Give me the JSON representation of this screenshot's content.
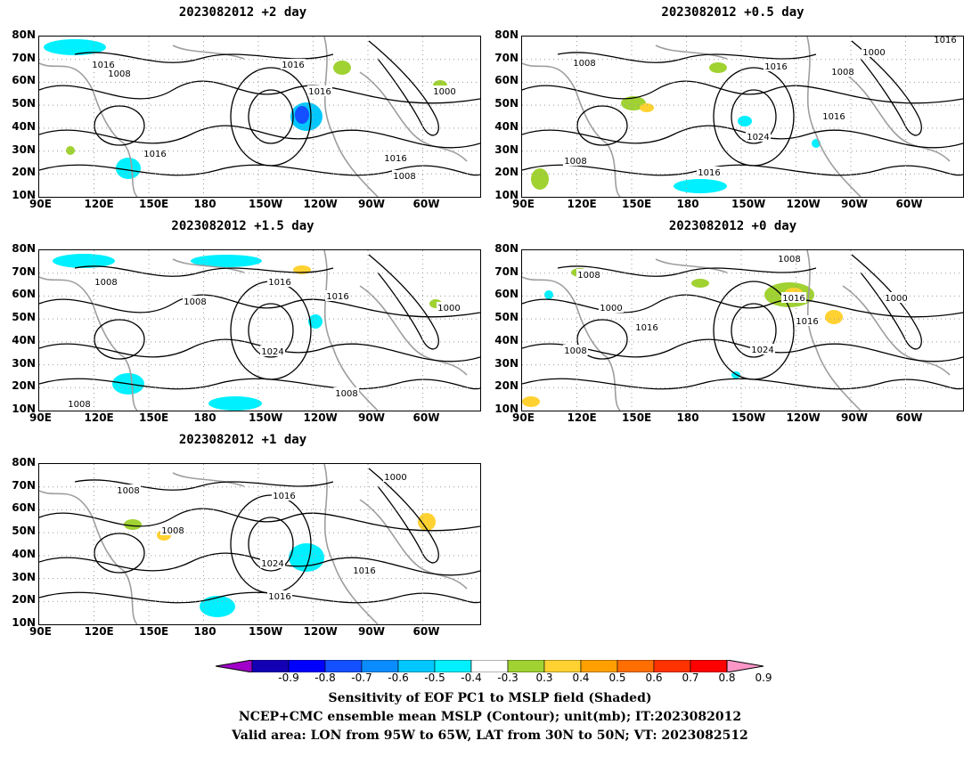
{
  "panels": [
    {
      "title": "2023082012 +2 day",
      "contour_labels": [
        "1016",
        "1008",
        "1016",
        "1016",
        "1000",
        "1016",
        "1016",
        "1008"
      ]
    },
    {
      "title": "2023082012 +0.5 day",
      "contour_labels": [
        "1008",
        "1016",
        "1000",
        "1008",
        "1016",
        "1024",
        "1008",
        "1016",
        "1016"
      ]
    },
    {
      "title": "2023082012 +1.5 day",
      "contour_labels": [
        "1008",
        "1016",
        "1008",
        "1016",
        "1000",
        "1024",
        "1008",
        "1008"
      ]
    },
    {
      "title": "2023082012 +0 day",
      "contour_labels": [
        "1008",
        "1008",
        "1000",
        "1016",
        "1016",
        "1000",
        "1016",
        "1024",
        "1008"
      ]
    },
    {
      "title": "2023082012 +1 day",
      "contour_labels": [
        "1008",
        "1016",
        "1000",
        "1008",
        "1024",
        "1016",
        "1016"
      ]
    }
  ],
  "axes": {
    "lat_labels": [
      "80N",
      "70N",
      "60N",
      "50N",
      "40N",
      "30N",
      "20N",
      "10N"
    ],
    "lon_labels": [
      "90E",
      "120E",
      "150E",
      "180",
      "150W",
      "120W",
      "90W",
      "60W"
    ]
  },
  "colorbar": {
    "labels": [
      "-0.9",
      "-0.8",
      "-0.7",
      "-0.6",
      "-0.5",
      "-0.4",
      "-0.3",
      "0.3",
      "0.4",
      "0.5",
      "0.6",
      "0.7",
      "0.8",
      "0.9"
    ],
    "colors": [
      "#a000c8",
      "#1400b4",
      "#0000ff",
      "#1450ff",
      "#0a8cff",
      "#00c8ff",
      "#00f0ff",
      "#ffffff",
      "#a0d232",
      "#ffd232",
      "#ffa000",
      "#ff6e00",
      "#ff3200",
      "#ff0000",
      "#ff96c8"
    ]
  },
  "caption": {
    "line1": "Sensitivity of EOF PC1 to MSLP field (Shaded)",
    "line2": "NCEP+CMC ensemble mean MSLP (Contour); unit(mb); IT:2023082012",
    "line3": "Valid area: LON from 95W to 65W, LAT from 30N to 50N; VT: 2023082512"
  }
}
